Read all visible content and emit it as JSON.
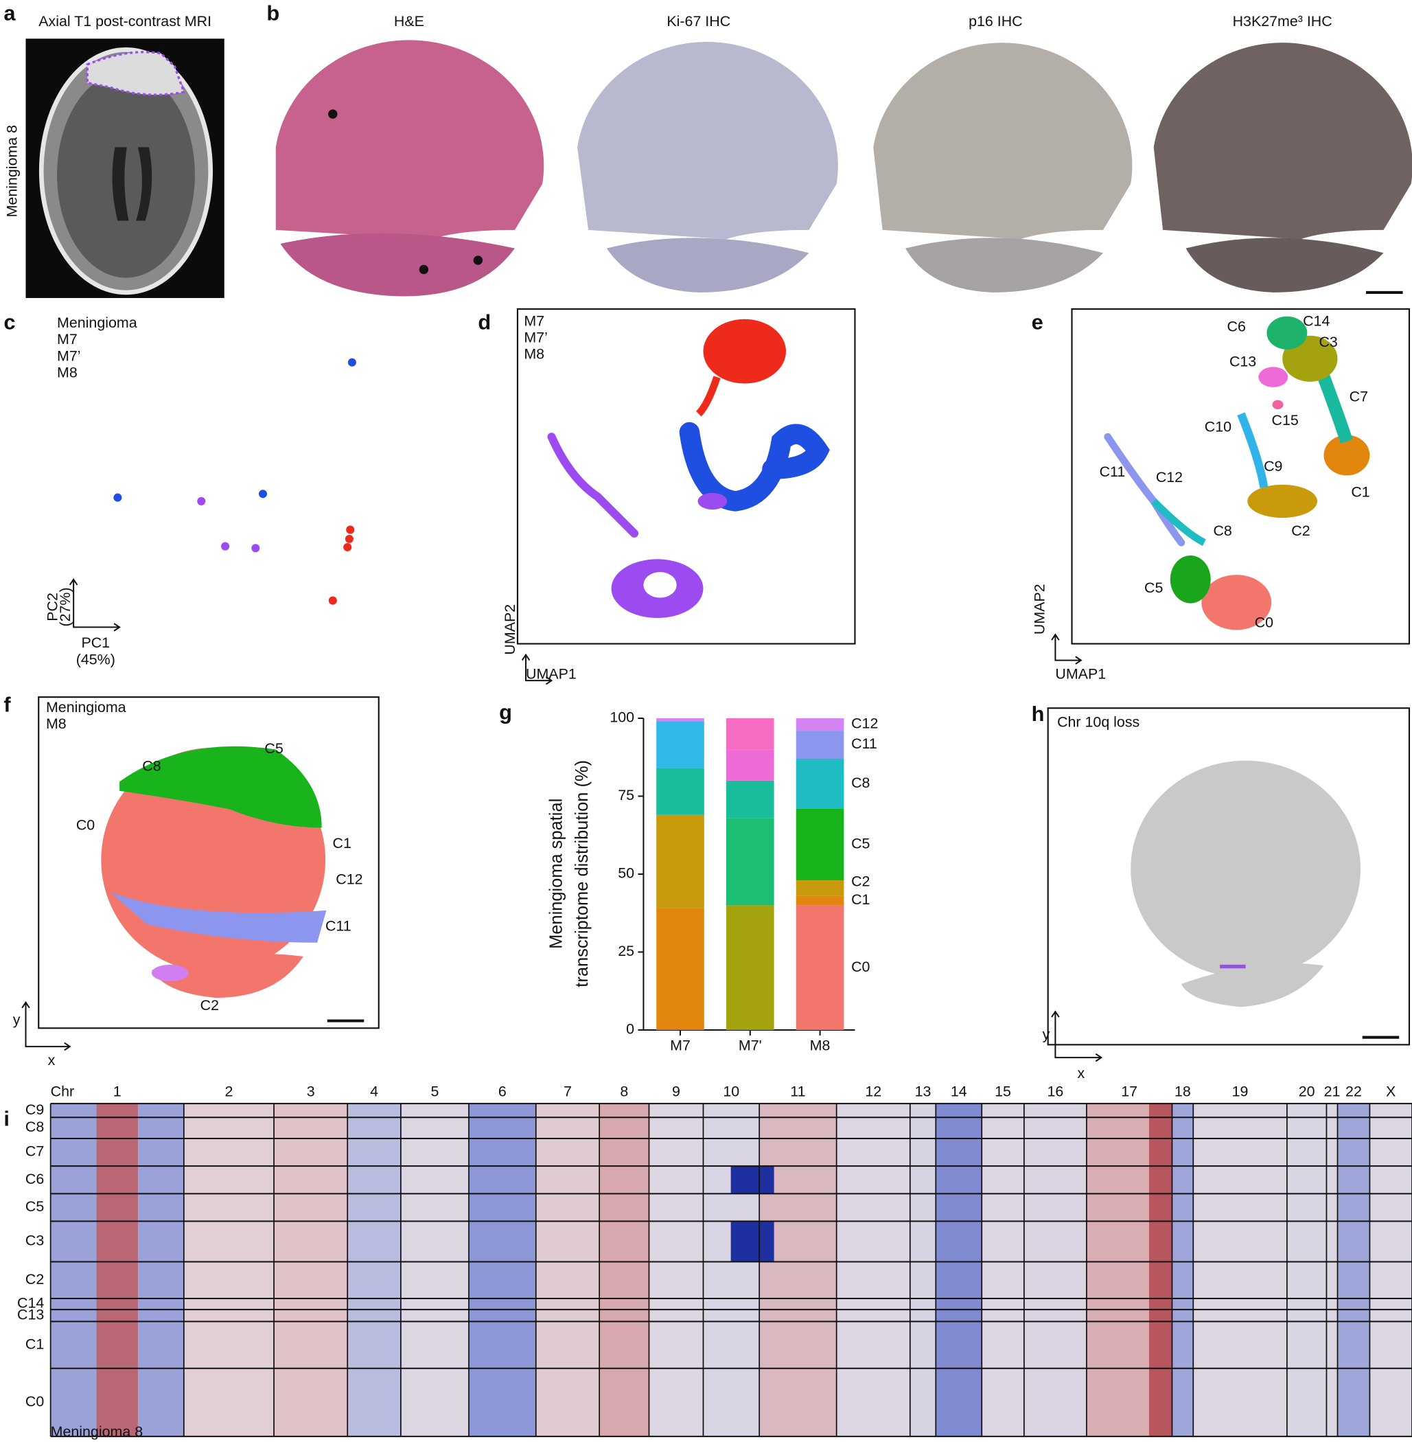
{
  "panel_letters": [
    "a",
    "b",
    "c",
    "d",
    "e",
    "f",
    "g",
    "h",
    "i"
  ],
  "mri": {
    "title": "Axial T1 post-contrast MRI",
    "side_label": "Meningioma 8"
  },
  "histology": {
    "titles": [
      "H&E",
      "Ki-67 IHC",
      "p16 IHC",
      "H3K27me³ IHC"
    ]
  },
  "pca": {
    "legend_title": "Meningioma",
    "groups": [
      {
        "name": "M7",
        "color": "#1f4fe0"
      },
      {
        "name": "M7’",
        "color": "#ee2a1b"
      },
      {
        "name": "M8",
        "color": "#9b4bf0"
      }
    ],
    "y_label": "PC2",
    "y_share": "(27%)",
    "x_label": "PC1",
    "x_share": "(45%)"
  },
  "umap_samples": {
    "groups": [
      {
        "name": "M7",
        "color": "#1f4fe0"
      },
      {
        "name": "M7’",
        "color": "#ee2a1b"
      },
      {
        "name": "M8",
        "color": "#9b4bf0"
      }
    ],
    "x_label": "UMAP1",
    "y_label": "UMAP2"
  },
  "umap_clusters": {
    "clusters": [
      {
        "name": "C6",
        "color": "#1db36b"
      },
      {
        "name": "C14",
        "color": "#f05fc8"
      },
      {
        "name": "C3",
        "color": "#a3a30f"
      },
      {
        "name": "C13",
        "color": "#ee6ad6"
      },
      {
        "name": "C7",
        "color": "#19b9a0"
      },
      {
        "name": "C15",
        "color": "#f2609f"
      },
      {
        "name": "C10",
        "color": "#2fb3e8"
      },
      {
        "name": "C9",
        "color": "#1bb8cc"
      },
      {
        "name": "C11",
        "color": "#8d96ee"
      },
      {
        "name": "C12",
        "color": "#d07ff0"
      },
      {
        "name": "C1",
        "color": "#e3860e"
      },
      {
        "name": "C2",
        "color": "#c89a0c"
      },
      {
        "name": "C8",
        "color": "#1fbcc4"
      },
      {
        "name": "C5",
        "color": "#19a61c"
      },
      {
        "name": "C0",
        "color": "#f3766d"
      }
    ],
    "x_label": "UMAP1",
    "y_label": "UMAP2"
  },
  "spatial_clusters": {
    "legend_title": "Meningioma",
    "sample": "M8",
    "labels": [
      {
        "name": "C8",
        "color": "#1fbcc4"
      },
      {
        "name": "C5",
        "color": "#19a61c"
      },
      {
        "name": "C0",
        "color": "#f3766d"
      },
      {
        "name": "C1",
        "color": "#e3860e"
      },
      {
        "name": "C12",
        "color": "#d07ff0"
      },
      {
        "name": "C11",
        "color": "#8d96ee"
      },
      {
        "name": "C2",
        "color": "#c89a0c"
      }
    ],
    "x_label": "x",
    "y_label": "y"
  },
  "chart_data": {
    "type": "stacked_bar",
    "y_label": [
      "Meningioma spatial",
      "transcriptome distribution (%)"
    ],
    "categories": [
      "M7",
      "M7'",
      "M8"
    ],
    "ylim": [
      0,
      100
    ],
    "yticks": [
      0,
      25,
      50,
      75,
      100
    ],
    "series": [
      {
        "name": "C0",
        "color": "#f3766d",
        "values": [
          0,
          0,
          40
        ]
      },
      {
        "name": "C1",
        "color": "#e3860e",
        "values": [
          39,
          0,
          3
        ]
      },
      {
        "name": "C2",
        "color": "#c89a0c",
        "values": [
          30,
          0,
          5
        ]
      },
      {
        "color": "#a3a30f",
        "values": [
          0,
          40,
          0
        ]
      },
      {
        "name": "C5",
        "color": "#19b31c",
        "values": [
          0,
          0,
          23
        ]
      },
      {
        "color": "#1dbd74",
        "values": [
          0,
          28,
          0
        ]
      },
      {
        "color": "#19bd9c",
        "values": [
          15,
          12,
          0
        ]
      },
      {
        "name": "C8",
        "color": "#1fbcc4",
        "values": [
          0,
          0,
          16
        ]
      },
      {
        "color": "#2fb8e8",
        "values": [
          15,
          0,
          0
        ]
      },
      {
        "name": "C11",
        "color": "#8d96ee",
        "values": [
          0,
          0,
          9
        ]
      },
      {
        "name": "C12",
        "color": "#d483f2",
        "values": [
          1,
          0,
          4
        ]
      },
      {
        "color": "#ee6ad6",
        "values": [
          0,
          10,
          0
        ]
      },
      {
        "color": "#f56cc2",
        "values": [
          0,
          10,
          0
        ]
      }
    ]
  },
  "spatial_cnv": {
    "label": "Chr 10q loss",
    "x_label": "x",
    "y_label": "y"
  },
  "cnv_heatmap": {
    "axis_label": "Chr",
    "chromosomes": [
      "1",
      "2",
      "3",
      "4",
      "5",
      "6",
      "7",
      "8",
      "9",
      "10",
      "11",
      "12",
      "13",
      "14",
      "15",
      "16",
      "17",
      "18",
      "19",
      "20",
      "21",
      "22",
      "X"
    ],
    "rows": [
      {
        "name": "C9",
        "color": "#111111"
      },
      {
        "name": "C8",
        "color": "#1fbcc4"
      },
      {
        "name": "C7",
        "color": "#111111"
      },
      {
        "name": "C6",
        "color": "#111111"
      },
      {
        "name": "C5",
        "color": "#19a61c"
      },
      {
        "name": "C3",
        "color": "#111111"
      },
      {
        "name": "C2",
        "color": "#c89a0c"
      },
      {
        "name": "C14",
        "color": "#111111"
      },
      {
        "name": "C13",
        "color": "#111111"
      },
      {
        "name": "C1",
        "color": "#e3860e"
      },
      {
        "name": "C0",
        "color": "#f3766d"
      }
    ],
    "footer": "Meningioma 8"
  }
}
